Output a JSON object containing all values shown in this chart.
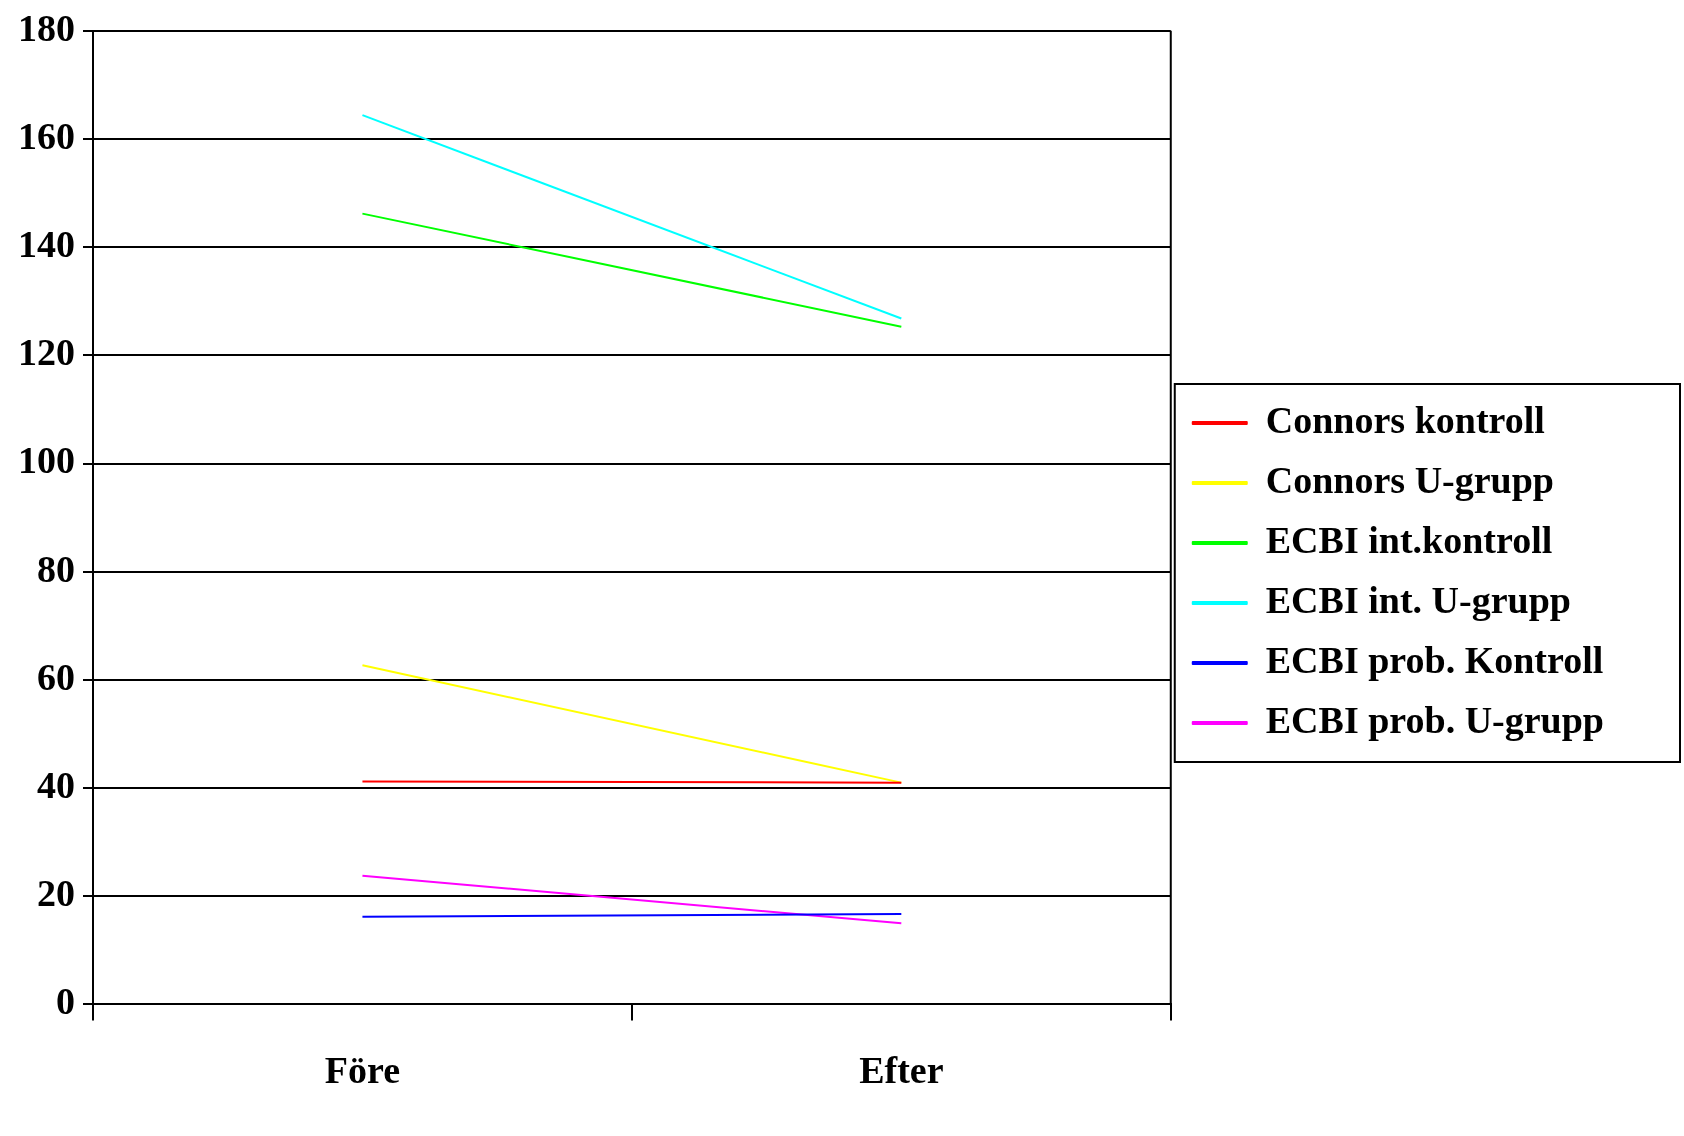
{
  "chart_data": {
    "type": "line",
    "categories": [
      "Före",
      "Efter"
    ],
    "series": [
      {
        "name": "Connors kontroll",
        "color": "#ff0000",
        "values": [
          41.2,
          41
        ]
      },
      {
        "name": "Connors U-grupp",
        "color": "#ffff00",
        "values": [
          62.7,
          41
        ]
      },
      {
        "name": "ECBI int.kontroll",
        "color": "#00ff00",
        "values": [
          146.2,
          125.3
        ]
      },
      {
        "name": "ECBI int. U-grupp",
        "color": "#00ffff",
        "values": [
          164.4,
          126.8
        ]
      },
      {
        "name": "ECBI prob. Kontroll",
        "color": "#0000ff",
        "values": [
          16.2,
          16.7
        ]
      },
      {
        "name": "ECBI prob. U-grupp",
        "color": "#ff00ff",
        "values": [
          23.8,
          15
        ]
      }
    ],
    "ylim": [
      0,
      180
    ],
    "yticks": [
      0,
      20,
      40,
      60,
      80,
      100,
      120,
      140,
      160,
      180
    ],
    "grid": "y",
    "legend": "right",
    "marker": "none",
    "line_style": "solid"
  }
}
